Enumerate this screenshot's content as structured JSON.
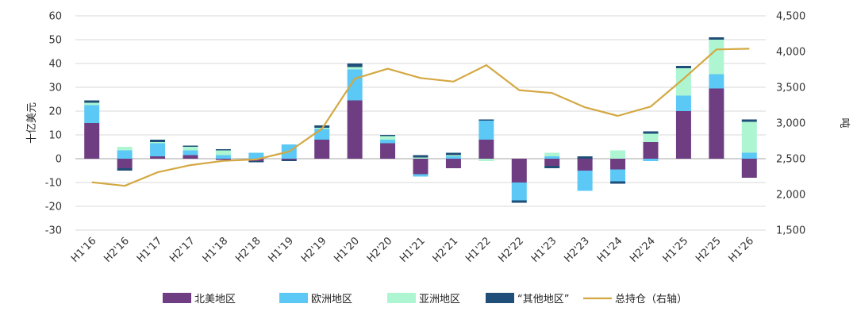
{
  "chart_data": {
    "type": "bar",
    "stacked": true,
    "categories": [
      "H1'16",
      "H2'16",
      "H1'17",
      "H2'17",
      "H1'18",
      "H2'18",
      "H1'19",
      "H2'19",
      "H1'20",
      "H2'20",
      "H1'21",
      "H2'21",
      "H1'22",
      "H2'22",
      "H1'23",
      "H2'23",
      "H1'24",
      "H2'24",
      "H1'25",
      "H2'25",
      "H1'26"
    ],
    "ylabel": "十亿美元",
    "ylabel_right": "吨",
    "ylim": [
      -30,
      60
    ],
    "y_ticks": [
      60,
      50,
      40,
      30,
      20,
      10,
      0,
      -10,
      -20,
      -30
    ],
    "y2lim": [
      1500,
      4500
    ],
    "y2_ticks": [
      "4,500",
      "4,000",
      "3,500",
      "3,000",
      "2,500",
      "2,000",
      "1,500"
    ],
    "grid": true,
    "legend_position": "bottom",
    "series": [
      {
        "name": "北美地区",
        "color": "#6f3d82",
        "values": [
          15,
          -4,
          1,
          1.5,
          -0.5,
          -1,
          -0.5,
          8,
          24.5,
          6.5,
          -6.5,
          -4,
          8,
          -10,
          -3,
          -5,
          -4.5,
          7,
          20,
          29.5,
          -8
        ]
      },
      {
        "name": "欧洲地区",
        "color": "#5bc8f5",
        "values": [
          7.5,
          3.5,
          5.5,
          2,
          1.5,
          2.5,
          6,
          4.5,
          13,
          1.5,
          -1,
          1,
          8,
          -7.5,
          1,
          -8.5,
          -5,
          -1,
          6.5,
          6,
          2.5
        ]
      },
      {
        "name": "亚洲地区",
        "color": "#aef5d2",
        "values": [
          1,
          1.5,
          0.5,
          1.5,
          2,
          0,
          0,
          0.5,
          1,
          1.5,
          0.5,
          0.5,
          -1,
          0,
          1.5,
          0,
          3.5,
          3.5,
          11.5,
          14.5,
          13
        ]
      },
      {
        "name": "“其他地区”",
        "color": "#1f4e79",
        "values": [
          1,
          -1,
          1,
          0.5,
          0.5,
          -0.5,
          -0.5,
          1,
          1.5,
          0.5,
          1,
          1,
          0.5,
          -1,
          -1,
          1,
          -1,
          1,
          1,
          1,
          1
        ]
      }
    ],
    "line_series": {
      "name": "总持仓（右轴）",
      "color": "#d4a843",
      "axis": "right",
      "values": [
        2170,
        2120,
        2310,
        2410,
        2470,
        2490,
        2600,
        2920,
        3620,
        3760,
        3630,
        3580,
        3810,
        3460,
        3420,
        3220,
        3100,
        3230,
        3620,
        4030,
        4040
      ]
    }
  }
}
